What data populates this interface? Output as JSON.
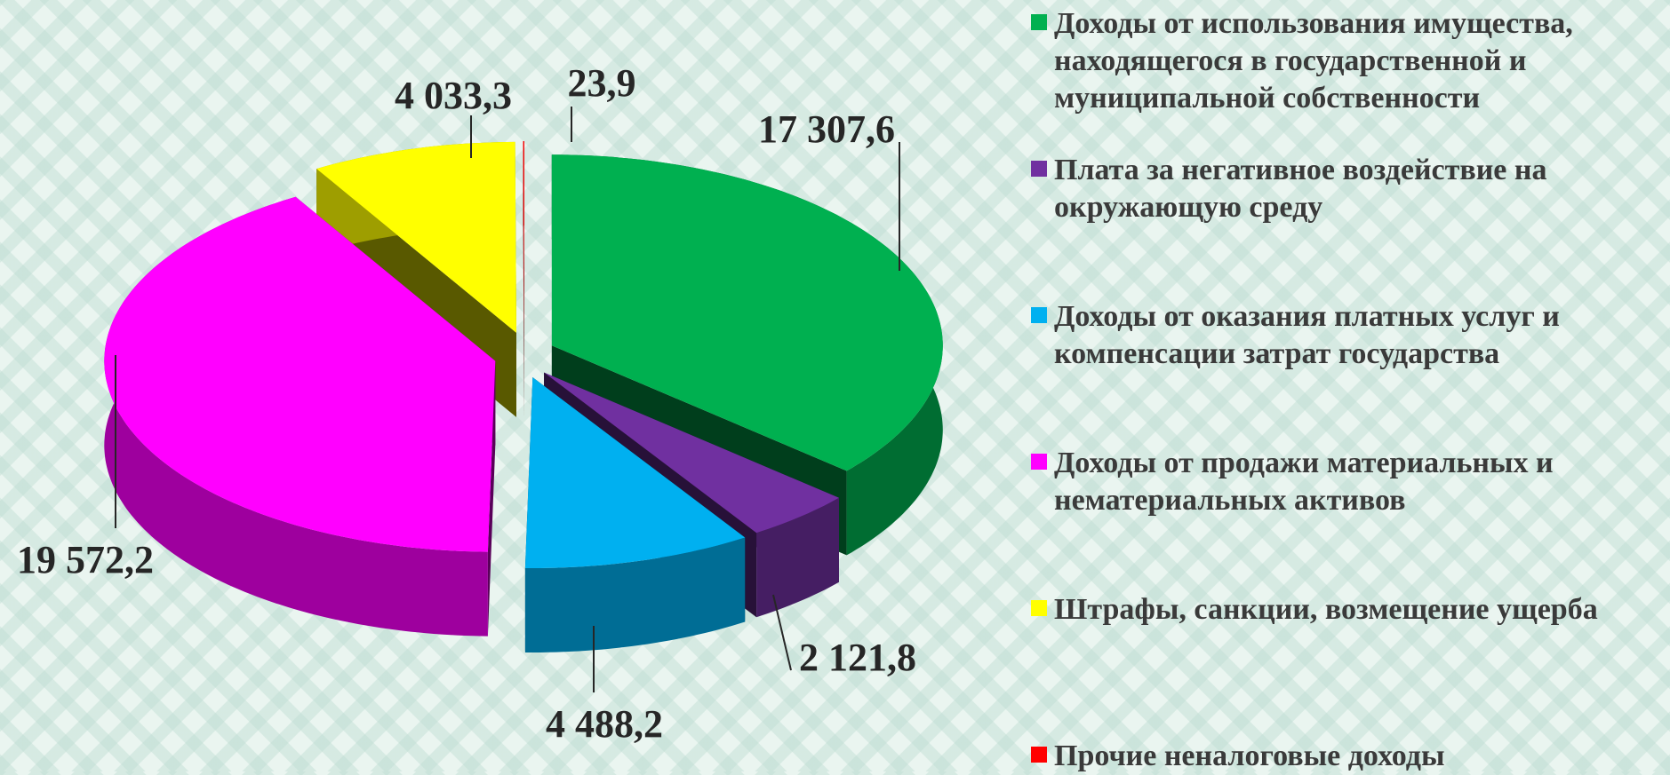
{
  "chart_data": {
    "type": "pie",
    "series": [
      {
        "name": "Доходы от использования имущества, находящегося в государственной и муниципальной собственности",
        "color": "#00b050"
      },
      {
        "name": "Плата за негативное воздействие на окружающую среду",
        "color": "#7030a0"
      },
      {
        "name": "Доходы от оказания платных услуг и компенсации затрат государства",
        "color": "#00b0f0"
      },
      {
        "name": "Доходы от продажи материальных и нематериальных активов",
        "color": "#ff00ff"
      },
      {
        "name": "Штрафы, санкции, возмещение ущерба",
        "color": "#ffff00"
      },
      {
        "name": "Прочие неналоговые доходы",
        "color": "#ff0000"
      }
    ],
    "values": [
      17307.6,
      2121.8,
      4488.2,
      19572.2,
      4033.3,
      23.9
    ],
    "value_labels": [
      "17 307,6",
      "2 121,8",
      "4 488,2",
      "19 572,2",
      "4 033,3",
      "23,9"
    ],
    "legend": "right"
  }
}
